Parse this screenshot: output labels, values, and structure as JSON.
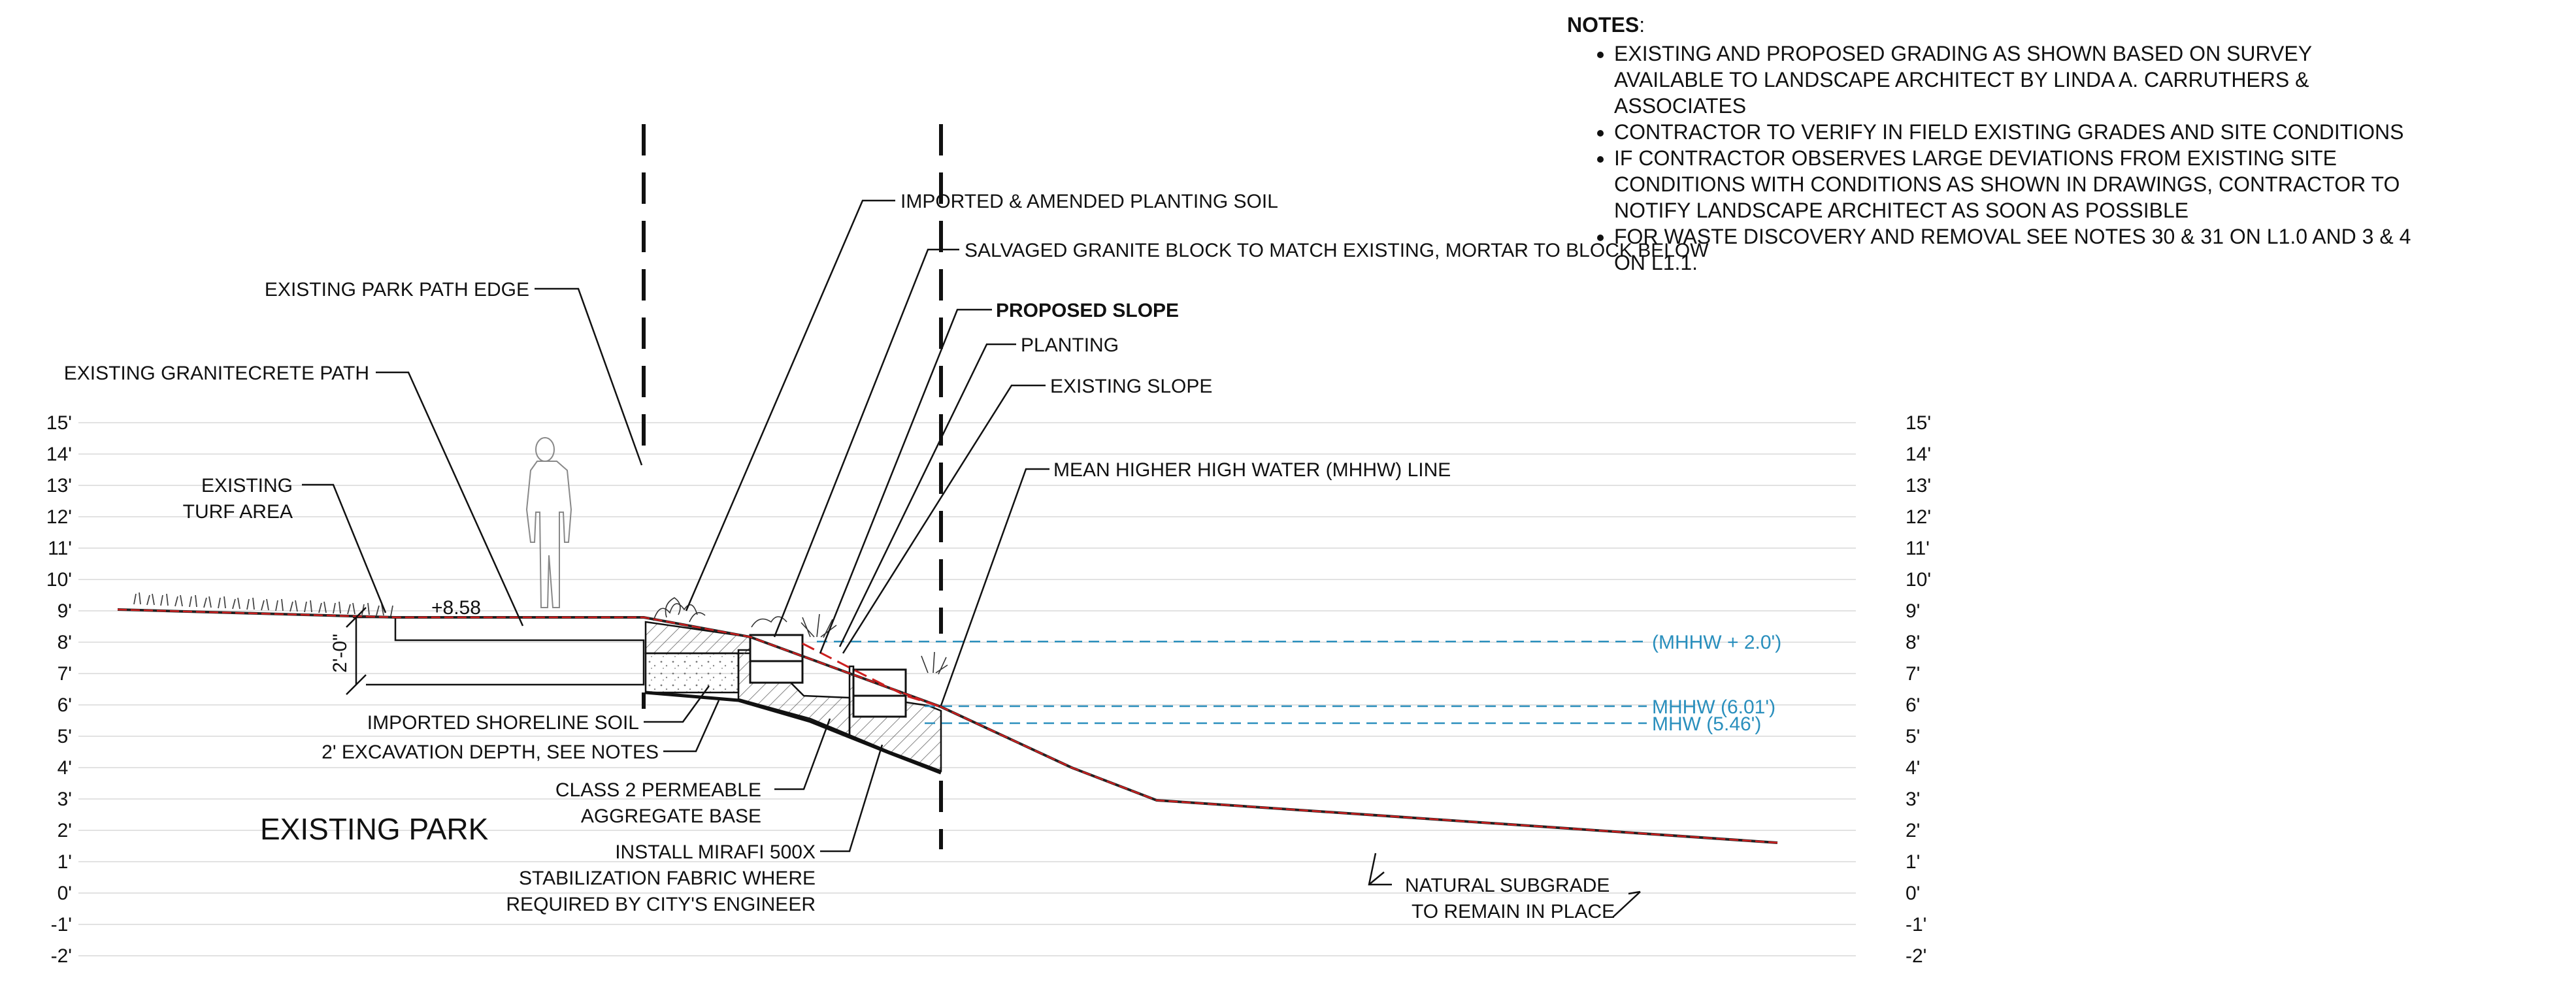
{
  "notes": {
    "title": "NOTES",
    "items": [
      "EXISTING AND PROPOSED GRADING AS SHOWN BASED ON SURVEY AVAILABLE TO LANDSCAPE ARCHITECT BY LINDA A. CARRUTHERS & ASSOCIATES",
      "CONTRACTOR TO VERIFY IN FIELD EXISTING GRADES AND SITE CONDITIONS",
      "IF CONTRACTOR OBSERVES LARGE DEVIATIONS FROM EXISTING SITE CONDITIONS WITH CONDITIONS AS SHOWN IN DRAWINGS, CONTRACTOR TO NOTIFY LANDSCAPE ARCHITECT AS SOON AS POSSIBLE",
      "FOR WASTE DISCOVERY AND REMOVAL SEE NOTES 30 & 31 ON L1.0 AND 3 & 4 ON L1.1."
    ]
  },
  "elevation_labels": [
    "15'",
    "14'",
    "13'",
    "12'",
    "11'",
    "10'",
    "9'",
    "8'",
    "7'",
    "6'",
    "5'",
    "4'",
    "3'",
    "2'",
    "1'",
    "0'",
    "-1'",
    "-2'"
  ],
  "callouts": {
    "imported_soil": "IMPORTED & AMENDED PLANTING SOIL",
    "salvaged_block": "SALVAGED GRANITE BLOCK TO MATCH EXISTING, MORTAR TO BLOCK BELOW",
    "proposed_slope": "PROPOSED SLOPE",
    "planting": "PLANTING",
    "existing_slope": "EXISTING SLOPE",
    "mhhw_line": "MEAN HIGHER HIGH WATER (MHHW) LINE",
    "park_path_edge": "EXISTING PARK PATH EDGE",
    "granitecrete_path": "EXISTING GRANITECRETE PATH",
    "turf_line1": "EXISTING",
    "turf_line2": "TURF AREA",
    "path_elevation": "+8.58",
    "excavation_dim": "2'-0\"",
    "shoreline_soil": "IMPORTED SHORELINE SOIL",
    "excavation_depth": "2' EXCAVATION DEPTH, SEE NOTES",
    "aggregate_line1": "CLASS 2 PERMEABLE",
    "aggregate_line2": "AGGREGATE BASE",
    "fabric_line1": "INSTALL MIRAFI 500X",
    "fabric_line2": "STABILIZATION FABRIC WHERE",
    "fabric_line3": "REQUIRED BY CITY'S ENGINEER",
    "existing_park": "EXISTING PARK",
    "subgrade_line1": "NATURAL SUBGRADE",
    "subgrade_line2": "TO REMAIN IN PLACE"
  },
  "water_levels": {
    "mhhw_plus": "(MHHW + 2.0')",
    "mhhw": "MHHW (6.01')",
    "mhw": "MHW (5.46')"
  },
  "colors": {
    "grade_line": "#cc1f1f",
    "water_line": "#2a8fbd",
    "ink": "#111111"
  }
}
